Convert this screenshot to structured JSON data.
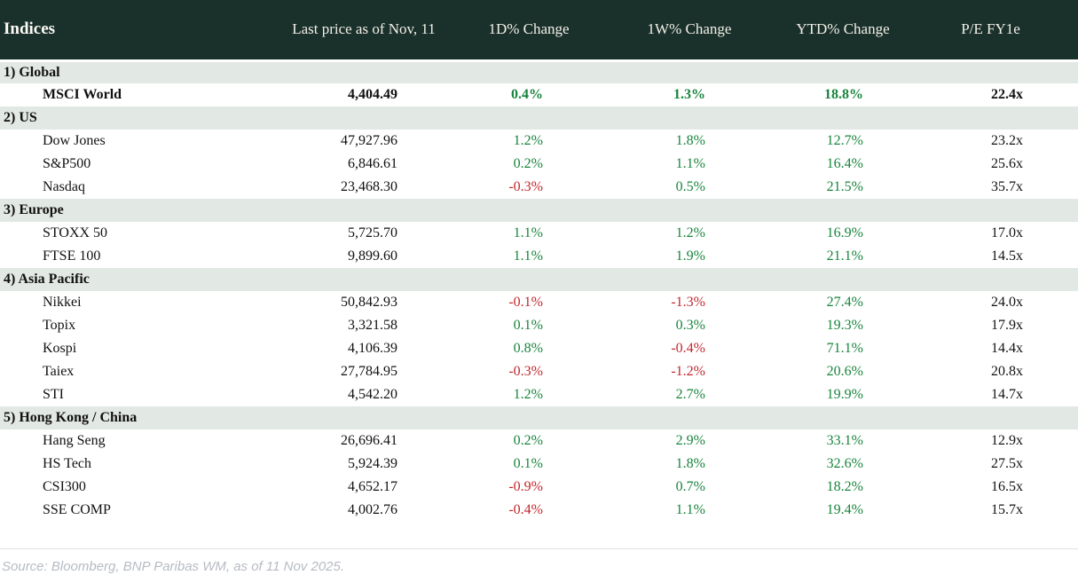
{
  "colors": {
    "header_bg": "#1a312b",
    "header_text": "#f2efe7",
    "section_bg": "#e2e8e4",
    "positive": "#17843c",
    "negative": "#c2272d",
    "text": "#111111",
    "source_text": "#b6bcc3",
    "divider": "#e0e0e0"
  },
  "chart_data": {
    "type": "table",
    "title": "Indices",
    "columns": [
      "Indices",
      "Last price as of Nov, 11",
      "1D% Change",
      "1W% Change",
      "YTD% Change",
      "P/E FY1e"
    ],
    "sections": [
      {
        "label": "1) Global",
        "rows": [
          {
            "name": "MSCI World",
            "last_price": "4,404.49",
            "d1_change": "0.4%",
            "w1_change": "1.3%",
            "ytd_change": "18.8%",
            "pe_fy1e": "22.4x",
            "bold": true
          }
        ]
      },
      {
        "label": "2) US",
        "rows": [
          {
            "name": "Dow Jones",
            "last_price": "47,927.96",
            "d1_change": "1.2%",
            "w1_change": "1.8%",
            "ytd_change": "12.7%",
            "pe_fy1e": "23.2x"
          },
          {
            "name": "S&P500",
            "last_price": "6,846.61",
            "d1_change": "0.2%",
            "w1_change": "1.1%",
            "ytd_change": "16.4%",
            "pe_fy1e": "25.6x"
          },
          {
            "name": "Nasdaq",
            "last_price": "23,468.30",
            "d1_change": "-0.3%",
            "w1_change": "0.5%",
            "ytd_change": "21.5%",
            "pe_fy1e": "35.7x"
          }
        ]
      },
      {
        "label": "3) Europe",
        "rows": [
          {
            "name": "STOXX 50",
            "last_price": "5,725.70",
            "d1_change": "1.1%",
            "w1_change": "1.2%",
            "ytd_change": "16.9%",
            "pe_fy1e": "17.0x"
          },
          {
            "name": "FTSE 100",
            "last_price": "9,899.60",
            "d1_change": "1.1%",
            "w1_change": "1.9%",
            "ytd_change": "21.1%",
            "pe_fy1e": "14.5x"
          }
        ]
      },
      {
        "label": "4) Asia Pacific",
        "rows": [
          {
            "name": "Nikkei",
            "last_price": "50,842.93",
            "d1_change": "-0.1%",
            "w1_change": "-1.3%",
            "ytd_change": "27.4%",
            "pe_fy1e": "24.0x"
          },
          {
            "name": "Topix",
            "last_price": "3,321.58",
            "d1_change": "0.1%",
            "w1_change": "0.3%",
            "ytd_change": "19.3%",
            "pe_fy1e": "17.9x"
          },
          {
            "name": "Kospi",
            "last_price": "4,106.39",
            "d1_change": "0.8%",
            "w1_change": "-0.4%",
            "ytd_change": "71.1%",
            "pe_fy1e": "14.4x"
          },
          {
            "name": "Taiex",
            "last_price": "27,784.95",
            "d1_change": "-0.3%",
            "w1_change": "-1.2%",
            "ytd_change": "20.6%",
            "pe_fy1e": "20.8x"
          },
          {
            "name": "STI",
            "last_price": "4,542.20",
            "d1_change": "1.2%",
            "w1_change": "2.7%",
            "ytd_change": "19.9%",
            "pe_fy1e": "14.7x"
          }
        ]
      },
      {
        "label": "5) Hong Kong / China",
        "rows": [
          {
            "name": "Hang Seng",
            "last_price": "26,696.41",
            "d1_change": "0.2%",
            "w1_change": "2.9%",
            "ytd_change": "33.1%",
            "pe_fy1e": "12.9x"
          },
          {
            "name": "HS Tech",
            "last_price": "5,924.39",
            "d1_change": "0.1%",
            "w1_change": "1.8%",
            "ytd_change": "32.6%",
            "pe_fy1e": "27.5x"
          },
          {
            "name": "CSI300",
            "last_price": "4,652.17",
            "d1_change": "-0.9%",
            "w1_change": "0.7%",
            "ytd_change": "18.2%",
            "pe_fy1e": "16.5x"
          },
          {
            "name": "SSE COMP",
            "last_price": "4,002.76",
            "d1_change": "-0.4%",
            "w1_change": "1.1%",
            "ytd_change": "19.4%",
            "pe_fy1e": "15.7x"
          }
        ]
      }
    ],
    "source": "Source: Bloomberg, BNP Paribas WM, as of 11 Nov 2025."
  }
}
